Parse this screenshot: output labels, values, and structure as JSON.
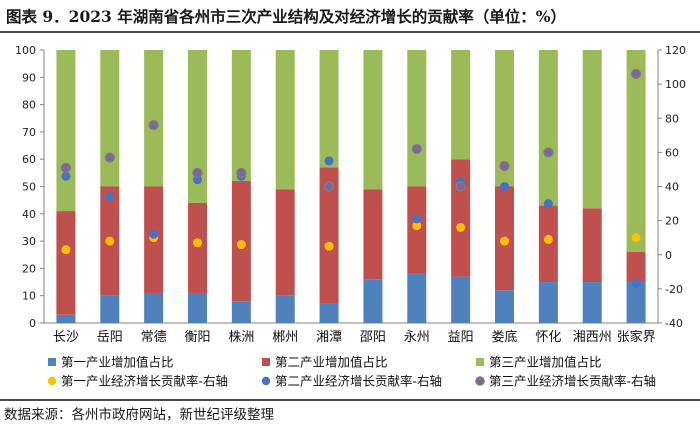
{
  "title": "图表 9．2023 年湖南省各州市三次产业结构及对经济增长的贡献率（单位：%）",
  "source": "数据来源：各州市政府网站，新世纪评级整理",
  "colors": {
    "primary_bar": "#4f81bd",
    "secondary_bar": "#c0504d",
    "tertiary_bar": "#9bbb59",
    "primary_dot": "#ffc000",
    "secondary_dot": "#4472c4",
    "tertiary_dot": "#8064a2",
    "tertiary_dot_border": "#7f7f7f"
  },
  "chart_data": {
    "type": "bar",
    "stacked": true,
    "categories": [
      "长沙",
      "岳阳",
      "常德",
      "衡阳",
      "株洲",
      "郴州",
      "湘潭",
      "邵阳",
      "永州",
      "益阳",
      "娄底",
      "怀化",
      "湘西州",
      "张家界"
    ],
    "left_axis": {
      "min": 0,
      "max": 100,
      "ticks": [
        0,
        10,
        20,
        30,
        40,
        50,
        60,
        70,
        80,
        90,
        100
      ]
    },
    "right_axis": {
      "min": -40,
      "max": 120,
      "ticks": [
        -40,
        -20,
        0,
        20,
        40,
        60,
        80,
        100,
        120
      ]
    },
    "bar_series": [
      {
        "name": "第一产业增加值占比",
        "color": "#4f81bd",
        "values": [
          3,
          10,
          11,
          11,
          8,
          10,
          7,
          16,
          18,
          17,
          12,
          15,
          15,
          15
        ]
      },
      {
        "name": "第二产业增加值占比",
        "color": "#c0504d",
        "values": [
          38,
          40,
          39,
          33,
          44,
          39,
          50,
          33,
          32,
          43,
          38,
          28,
          27,
          11
        ]
      },
      {
        "name": "第三产业增加值占比",
        "color": "#9bbb59",
        "values": [
          59,
          50,
          50,
          56,
          48,
          51,
          43,
          51,
          50,
          40,
          50,
          57,
          58,
          74
        ]
      }
    ],
    "dot_series": [
      {
        "name": "第一产业经济增长贡献率-右轴",
        "color": "#ffc000",
        "axis": "right",
        "values": [
          3,
          8,
          10,
          7,
          6,
          null,
          5,
          null,
          17,
          16,
          8,
          9,
          null,
          10
        ]
      },
      {
        "name": "第二产业经济增长贡献率-右轴",
        "color": "#4472c4",
        "axis": "right",
        "values": [
          46,
          34,
          12,
          44,
          46,
          null,
          55,
          null,
          21,
          43,
          40,
          30,
          null,
          -17
        ]
      },
      {
        "name": "第三产业经济增长贡献率-右轴",
        "color": "#8064a2",
        "axis": "right",
        "values": [
          51,
          57,
          76,
          48,
          48,
          null,
          40,
          null,
          62,
          40,
          52,
          60,
          null,
          106
        ]
      }
    ],
    "legend_position": "bottom",
    "grid": false
  }
}
